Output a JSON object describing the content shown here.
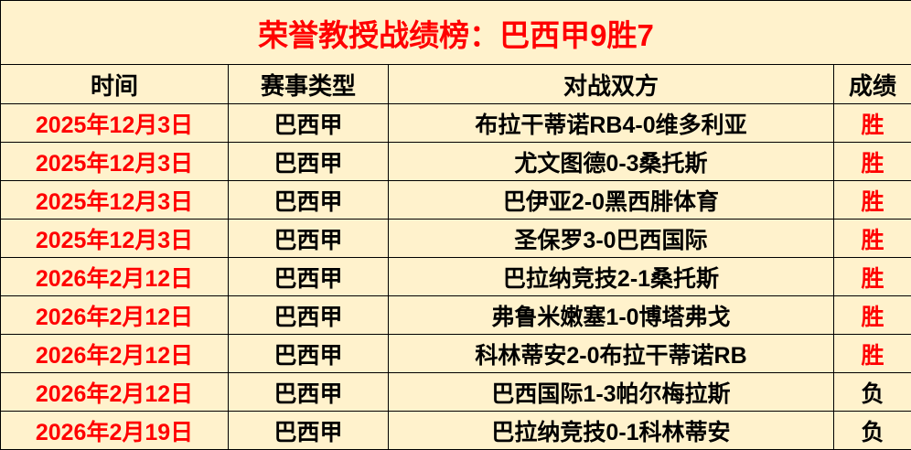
{
  "title": "荣誉教授战绩榜：巴西甲9胜7",
  "headers": [
    "时间",
    "赛事类型",
    "对战双方",
    "成绩"
  ],
  "colors": {
    "background": "#fff2cc",
    "accent": "#ff0000",
    "text": "#000000"
  },
  "rows": [
    {
      "date": "2025年12月3日",
      "league": "巴西甲",
      "match": "布拉干蒂诺RB4-0维多利亚",
      "result": "胜"
    },
    {
      "date": "2025年12月3日",
      "league": "巴西甲",
      "match": "尤文图德0-3桑托斯",
      "result": "胜"
    },
    {
      "date": "2025年12月3日",
      "league": "巴西甲",
      "match": "巴伊亚2-0黑西腓体育",
      "result": "胜"
    },
    {
      "date": "2025年12月3日",
      "league": "巴西甲",
      "match": "圣保罗3-0巴西国际",
      "result": "胜"
    },
    {
      "date": "2026年2月12日",
      "league": "巴西甲",
      "match": "巴拉纳竞技2-1桑托斯",
      "result": "胜"
    },
    {
      "date": "2026年2月12日",
      "league": "巴西甲",
      "match": "弗鲁米嫩塞1-0博塔弗戈",
      "result": "胜"
    },
    {
      "date": "2026年2月12日",
      "league": "巴西甲",
      "match": "科林蒂安2-0布拉干蒂诺RB",
      "result": "胜"
    },
    {
      "date": "2026年2月12日",
      "league": "巴西甲",
      "match": "巴西国际1-3帕尔梅拉斯",
      "result": "负"
    },
    {
      "date": "2026年2月19日",
      "league": "巴西甲",
      "match": "巴拉纳竞技0-1科林蒂安",
      "result": "负"
    }
  ]
}
